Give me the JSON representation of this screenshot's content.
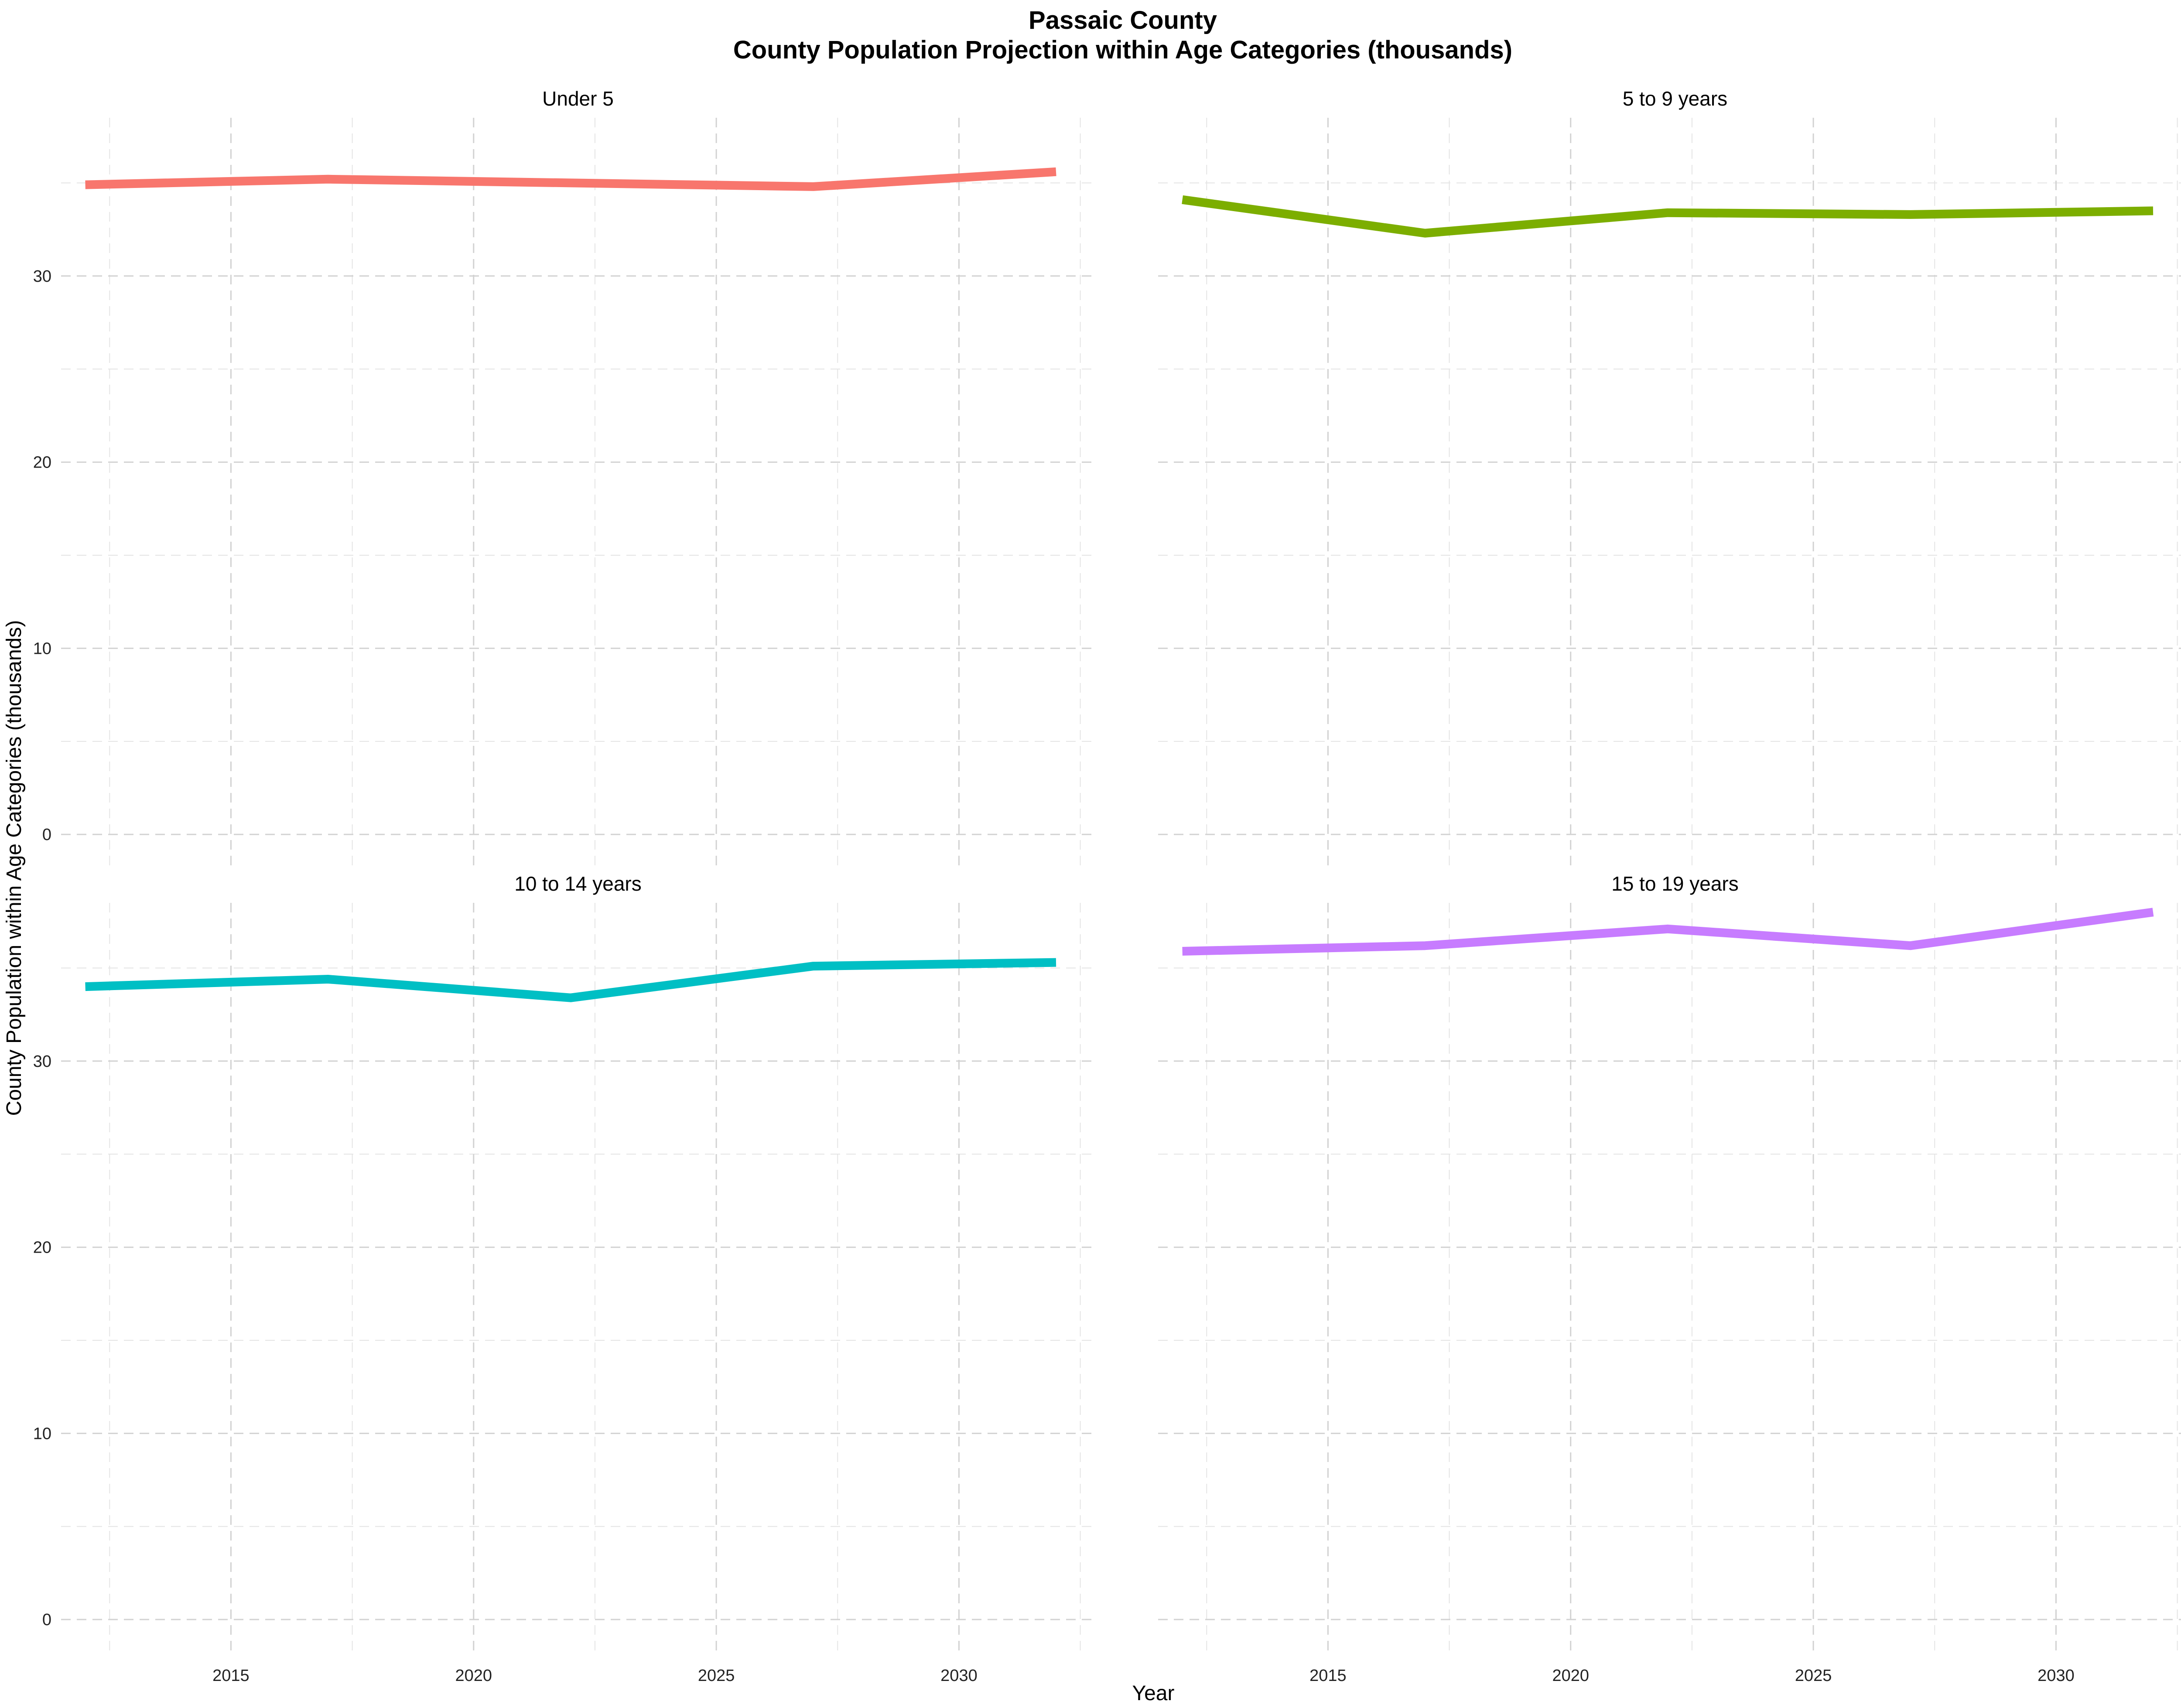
{
  "chart_data": {
    "type": "line",
    "title": "Passaic County",
    "subtitle": "County Population Projection within Age Categories (thousands)",
    "xlabel": "Year",
    "ylabel": "County Population within Age Categories (thousands)",
    "xlim": [
      2011.5,
      2032.8
    ],
    "ylim": [
      -1.8,
      38.5
    ],
    "x_ticks": [
      2015,
      2020,
      2025,
      2030
    ],
    "y_ticks": [
      0,
      10,
      20,
      30
    ],
    "grid": true,
    "grid_style": "dashed",
    "legend": "none",
    "facets": [
      {
        "name": "Under 5",
        "color": "#F8766D",
        "x": [
          2012,
          2017,
          2022,
          2027,
          2032
        ],
        "values": [
          34.9,
          35.2,
          35.0,
          34.8,
          35.6
        ]
      },
      {
        "name": "5 to 9 years",
        "color": "#7CAE00",
        "x": [
          2012,
          2017,
          2022,
          2027,
          2032
        ],
        "values": [
          34.1,
          32.3,
          33.4,
          33.3,
          33.5
        ]
      },
      {
        "name": "10 to 14 years",
        "color": "#00BFC4",
        "x": [
          2012,
          2017,
          2022,
          2027,
          2032
        ],
        "values": [
          34.0,
          34.4,
          33.4,
          35.1,
          35.3
        ]
      },
      {
        "name": "15 to 19 years",
        "color": "#C77CFF",
        "x": [
          2012,
          2017,
          2022,
          2027,
          2032
        ],
        "values": [
          35.9,
          36.2,
          37.1,
          36.2,
          38.0
        ]
      }
    ]
  }
}
